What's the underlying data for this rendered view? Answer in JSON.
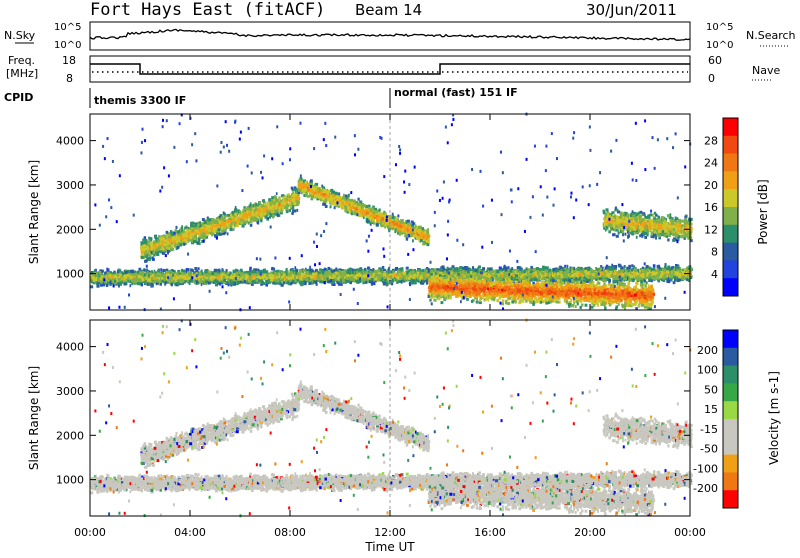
{
  "header": {
    "title": "Fort Hays East (fitACF)",
    "beam": "Beam 14",
    "date": "30/Jun/2011"
  },
  "top_panel": {
    "left_label": "N.Sky",
    "left_ticks": [
      "10^5",
      "10^0"
    ],
    "right_ticks": [
      "10^5",
      "10^0"
    ],
    "right_label": "N.Search"
  },
  "freq_panel": {
    "left_label_1": "Freq.",
    "left_label_2": "[MHz]",
    "left_ticks": [
      "18",
      "8"
    ],
    "right_ticks": [
      "60",
      "0"
    ],
    "right_label": "Nave"
  },
  "cpid": {
    "label": "CPID",
    "segments": [
      "themis 3300 IF",
      "normal (fast) 151 IF"
    ]
  },
  "colors": {
    "power": [
      "#0000ff",
      "#2244dd",
      "#2a5aa0",
      "#2d8f6a",
      "#7fb04a",
      "#ccc82a",
      "#f0a016",
      "#f07814",
      "#f04a10",
      "#ff0000"
    ],
    "velocity": [
      "#ff0000",
      "#f07814",
      "#f0a016",
      "#c8c8c0",
      "#c8c8c0",
      "#9ad846",
      "#37a847",
      "#2d8f6a",
      "#2a5aa0",
      "#0000ff"
    ]
  },
  "chart_data": [
    {
      "type": "heatmap",
      "name": "power",
      "ylabel": "Slant Range [km]",
      "yticks": [
        1000,
        2000,
        3000,
        4000
      ],
      "ylim": [
        180,
        4600
      ],
      "xlim": [
        0,
        24
      ],
      "colorbar_label": "Power [dB]",
      "colorbar_ticks": [
        4,
        8,
        12,
        16,
        20,
        24,
        28
      ],
      "clim": [
        0,
        32
      ],
      "features": [
        {
          "t0": 0.0,
          "t1": 24.0,
          "r_start": 900,
          "r_end": 1000,
          "width": 220,
          "value": 18
        },
        {
          "t0": 2.0,
          "t1": 8.3,
          "r_start": 1500,
          "r_end": 2700,
          "width": 320,
          "value": 20
        },
        {
          "t0": 8.3,
          "t1": 13.5,
          "r_start": 3000,
          "r_end": 1800,
          "width": 260,
          "value": 22
        },
        {
          "t0": 13.5,
          "t1": 22.5,
          "r_start": 700,
          "r_end": 500,
          "width": 380,
          "value": 27
        },
        {
          "t0": 20.5,
          "t1": 24.0,
          "r_start": 2200,
          "r_end": 2000,
          "width": 360,
          "value": 20
        }
      ]
    },
    {
      "type": "heatmap",
      "name": "velocity",
      "ylabel": "Slant Range [km]",
      "yticks": [
        1000,
        2000,
        3000,
        4000
      ],
      "ylim": [
        180,
        4600
      ],
      "xlim": [
        0,
        24
      ],
      "colorbar_label": "Velocity [m s-1]",
      "colorbar_ticks": [
        200,
        100,
        50,
        15,
        -15,
        -50,
        -100,
        -200
      ],
      "xlabel": "Time UT",
      "xticks": [
        "00:00",
        "04:00",
        "08:00",
        "12:00",
        "16:00",
        "20:00",
        "00:00"
      ]
    }
  ]
}
